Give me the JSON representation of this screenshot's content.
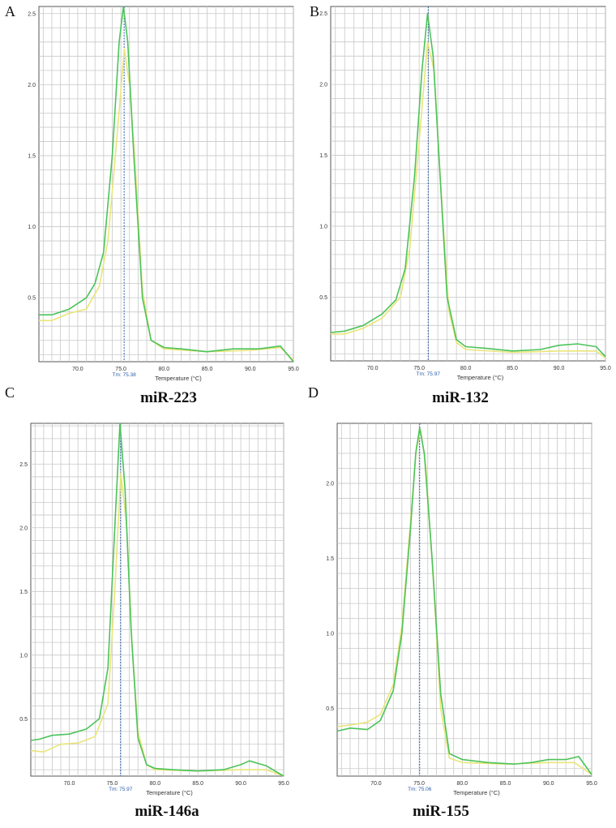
{
  "panels": [
    {
      "letter": "A",
      "gene": "miR-223",
      "tm_label": "Tm: 75.38"
    },
    {
      "letter": "B",
      "gene": "miR-132",
      "tm_label": "Tm: 75.97"
    },
    {
      "letter": "C",
      "gene": "miR-146a",
      "tm_label": "Tm: 75.97"
    },
    {
      "letter": "D",
      "gene": "miR-155",
      "tm_label": "Tm: 75.06"
    }
  ],
  "colors": {
    "sample_green": "#4cc35a",
    "sample_yellow": "#e9e57a",
    "tm_line": "#2a5da8",
    "grid": "#c8c8c8"
  },
  "chart_data": [
    {
      "type": "line",
      "title": "",
      "xlabel": "Temperature (°C)",
      "ylabel": "",
      "xlim": [
        65.5,
        95
      ],
      "ylim": [
        0.05,
        2.55
      ],
      "x_ticks": [
        "70.0",
        "75.0",
        "80.0",
        "85.0",
        "90.0",
        "95.0"
      ],
      "y_ticks": [
        "0.5",
        "1.0",
        "1.5",
        "2.0",
        "2.5"
      ],
      "tm": 75.38,
      "series": [
        {
          "color": "#4cc35a",
          "points": [
            [
              65.5,
              0.38
            ],
            [
              67,
              0.38
            ],
            [
              69,
              0.42
            ],
            [
              71,
              0.5
            ],
            [
              72,
              0.6
            ],
            [
              73,
              0.82
            ],
            [
              74,
              1.5
            ],
            [
              74.8,
              2.3
            ],
            [
              75.3,
              2.55
            ],
            [
              75.8,
              2.3
            ],
            [
              76.5,
              1.5
            ],
            [
              77.5,
              0.5
            ],
            [
              78.5,
              0.2
            ],
            [
              80,
              0.15
            ],
            [
              82,
              0.14
            ],
            [
              85,
              0.12
            ],
            [
              88,
              0.14
            ],
            [
              91,
              0.14
            ],
            [
              93.5,
              0.16
            ],
            [
              95,
              0.05
            ]
          ]
        },
        {
          "color": "#e9e57a",
          "points": [
            [
              65.5,
              0.34
            ],
            [
              67,
              0.34
            ],
            [
              69,
              0.39
            ],
            [
              71,
              0.42
            ],
            [
              72.5,
              0.58
            ],
            [
              73.5,
              0.9
            ],
            [
              74.5,
              1.6
            ],
            [
              75.4,
              2.25
            ],
            [
              76,
              2.0
            ],
            [
              76.7,
              1.4
            ],
            [
              77.5,
              0.55
            ],
            [
              78.5,
              0.2
            ],
            [
              80,
              0.14
            ],
            [
              85,
              0.12
            ],
            [
              90,
              0.13
            ],
            [
              93.5,
              0.15
            ],
            [
              95,
              0.06
            ]
          ]
        }
      ]
    },
    {
      "type": "line",
      "title": "",
      "xlabel": "Temperature (°C)",
      "ylabel": "",
      "xlim": [
        65.5,
        95
      ],
      "ylim": [
        0.05,
        2.55
      ],
      "x_ticks": [
        "70.0",
        "75.0",
        "80.0",
        "85.0",
        "90.0",
        "95.0"
      ],
      "y_ticks": [
        "0.5",
        "1.0",
        "1.5",
        "2.0",
        "2.5"
      ],
      "tm": 75.97,
      "series": [
        {
          "color": "#4cc35a",
          "points": [
            [
              65.5,
              0.25
            ],
            [
              67,
              0.26
            ],
            [
              69,
              0.3
            ],
            [
              71,
              0.38
            ],
            [
              72.5,
              0.48
            ],
            [
              73.5,
              0.7
            ],
            [
              74.5,
              1.35
            ],
            [
              75.3,
              2.1
            ],
            [
              75.9,
              2.5
            ],
            [
              76.5,
              2.2
            ],
            [
              77.2,
              1.4
            ],
            [
              78,
              0.5
            ],
            [
              79,
              0.2
            ],
            [
              80,
              0.15
            ],
            [
              82,
              0.14
            ],
            [
              85,
              0.12
            ],
            [
              88,
              0.13
            ],
            [
              90,
              0.16
            ],
            [
              92,
              0.17
            ],
            [
              94,
              0.15
            ],
            [
              95,
              0.08
            ]
          ]
        },
        {
          "color": "#e9e57a",
          "points": [
            [
              65.5,
              0.24
            ],
            [
              67,
              0.24
            ],
            [
              69,
              0.28
            ],
            [
              71,
              0.35
            ],
            [
              73,
              0.5
            ],
            [
              74,
              0.85
            ],
            [
              75,
              1.6
            ],
            [
              75.9,
              2.3
            ],
            [
              76.6,
              2.1
            ],
            [
              77.3,
              1.3
            ],
            [
              78.2,
              0.4
            ],
            [
              79,
              0.18
            ],
            [
              80,
              0.13
            ],
            [
              85,
              0.11
            ],
            [
              90,
              0.12
            ],
            [
              94,
              0.12
            ],
            [
              95,
              0.07
            ]
          ]
        }
      ]
    },
    {
      "type": "line",
      "title": "",
      "xlabel": "Temperature (°C)",
      "ylabel": "",
      "xlim": [
        65.5,
        95
      ],
      "ylim": [
        0.05,
        2.82
      ],
      "x_ticks": [
        "70.0",
        "75.0",
        "80.0",
        "85.0",
        "90.0",
        "95.0"
      ],
      "y_ticks": [
        "0.5",
        "1.0",
        "1.5",
        "2.0",
        "2.5"
      ],
      "tm": 75.97,
      "series": [
        {
          "color": "#4cc35a",
          "points": [
            [
              65.5,
              0.33
            ],
            [
              66.5,
              0.34
            ],
            [
              68,
              0.37
            ],
            [
              70,
              0.38
            ],
            [
              72,
              0.42
            ],
            [
              73.5,
              0.5
            ],
            [
              74.5,
              0.9
            ],
            [
              75.3,
              2.0
            ],
            [
              75.9,
              2.82
            ],
            [
              76.5,
              2.3
            ],
            [
              77.2,
              1.2
            ],
            [
              78,
              0.35
            ],
            [
              79,
              0.14
            ],
            [
              80,
              0.11
            ],
            [
              82,
              0.1
            ],
            [
              85,
              0.09
            ],
            [
              88,
              0.1
            ],
            [
              90,
              0.14
            ],
            [
              91,
              0.17
            ],
            [
              93,
              0.13
            ],
            [
              95,
              0.05
            ]
          ]
        },
        {
          "color": "#e9e57a",
          "points": [
            [
              65.5,
              0.25
            ],
            [
              67,
              0.24
            ],
            [
              69,
              0.3
            ],
            [
              71,
              0.31
            ],
            [
              73,
              0.36
            ],
            [
              74.5,
              0.62
            ],
            [
              75.3,
              1.5
            ],
            [
              76,
              2.43
            ],
            [
              76.7,
              2.0
            ],
            [
              77.3,
              1.1
            ],
            [
              78,
              0.4
            ],
            [
              79,
              0.14
            ],
            [
              80,
              0.1
            ],
            [
              85,
              0.09
            ],
            [
              90,
              0.1
            ],
            [
              93,
              0.1
            ],
            [
              95,
              0.05
            ]
          ]
        }
      ]
    },
    {
      "type": "line",
      "title": "",
      "xlabel": "Temperature (°C)",
      "ylabel": "",
      "xlim": [
        65.5,
        95
      ],
      "ylim": [
        0.05,
        2.4
      ],
      "x_ticks": [
        "70.0",
        "75.0",
        "80.0",
        "85.0",
        "90.0",
        "95.0"
      ],
      "y_ticks": [
        "0.5",
        "1.0",
        "1.5",
        "2.0"
      ],
      "tm": 75.06,
      "series": [
        {
          "color": "#4cc35a",
          "points": [
            [
              65.5,
              0.35
            ],
            [
              67,
              0.37
            ],
            [
              69,
              0.36
            ],
            [
              70.5,
              0.42
            ],
            [
              72,
              0.62
            ],
            [
              73,
              1.0
            ],
            [
              74,
              1.7
            ],
            [
              74.6,
              2.2
            ],
            [
              75.06,
              2.37
            ],
            [
              75.6,
              2.2
            ],
            [
              76.5,
              1.5
            ],
            [
              77.5,
              0.6
            ],
            [
              78.5,
              0.2
            ],
            [
              80,
              0.16
            ],
            [
              83,
              0.14
            ],
            [
              86,
              0.13
            ],
            [
              88,
              0.14
            ],
            [
              90,
              0.16
            ],
            [
              92,
              0.16
            ],
            [
              93.5,
              0.18
            ],
            [
              95,
              0.06
            ]
          ]
        },
        {
          "color": "#e9e57a",
          "points": [
            [
              65.5,
              0.38
            ],
            [
              67,
              0.39
            ],
            [
              69,
              0.41
            ],
            [
              70.5,
              0.46
            ],
            [
              72,
              0.66
            ],
            [
              73,
              1.05
            ],
            [
              74,
              1.75
            ],
            [
              74.7,
              2.25
            ],
            [
              75.2,
              2.35
            ],
            [
              75.8,
              2.1
            ],
            [
              76.7,
              1.3
            ],
            [
              77.5,
              0.5
            ],
            [
              78.5,
              0.17
            ],
            [
              80,
              0.14
            ],
            [
              85,
              0.13
            ],
            [
              90,
              0.14
            ],
            [
              93,
              0.14
            ],
            [
              95,
              0.06
            ]
          ]
        }
      ]
    }
  ]
}
